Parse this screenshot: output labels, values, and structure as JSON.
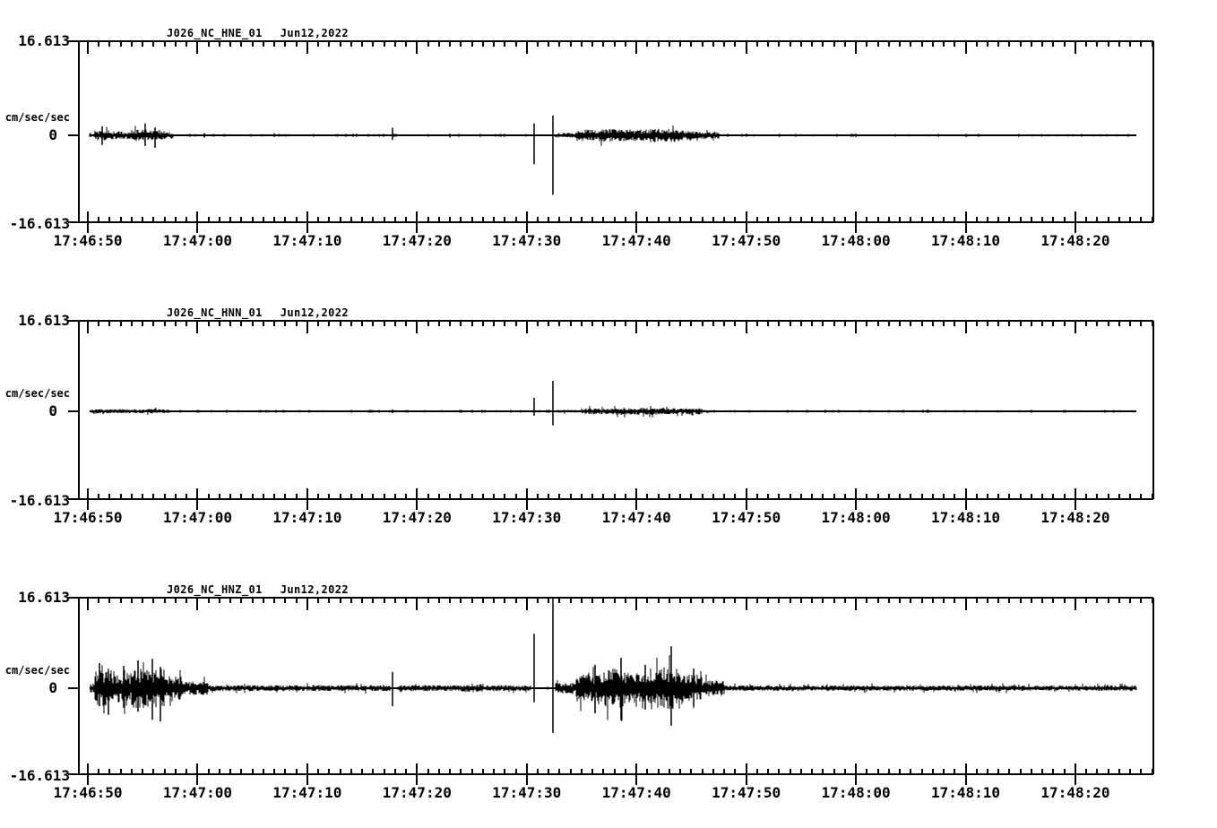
{
  "page": {
    "background": "#ffffff",
    "foreground": "#000000"
  },
  "time_axis": {
    "labels": [
      "17:46:50",
      "17:47:00",
      "17:47:10",
      "17:47:20",
      "17:47:30",
      "17:47:40",
      "17:47:50",
      "17:48:00",
      "17:48:10",
      "17:48:20"
    ],
    "minor_tick_interval_s": 1,
    "major_tick_interval_s": 10
  },
  "y_axis": {
    "max_label": "16.613",
    "zero_label": "0",
    "min_label": "-16.613",
    "unit": "cm/sec/sec",
    "ylim": [
      -16.613,
      16.613
    ]
  },
  "chart_data": [
    {
      "type": "line",
      "trace_id": "J026_NC_HNE_01",
      "date": "Jun12,2022",
      "ylabel": "cm/sec/sec",
      "ylim": [
        -16.613,
        16.613
      ],
      "signal": {
        "units": "cm/sec/sec",
        "envelope": [
          [
            0.2,
            0.6,
            0.25
          ],
          [
            0.6,
            2.0,
            0.8
          ],
          [
            2.0,
            4.0,
            0.65
          ],
          [
            4.0,
            7.0,
            0.9
          ],
          [
            7.0,
            7.8,
            0.5
          ],
          [
            7.8,
            27.6,
            0.14
          ],
          [
            28.1,
            40.4,
            0.14
          ],
          [
            42.6,
            44.5,
            0.4
          ],
          [
            44.5,
            47.0,
            0.95
          ],
          [
            47.0,
            49.0,
            1.1
          ],
          [
            49.0,
            51.0,
            0.95
          ],
          [
            51.0,
            53.5,
            1.1
          ],
          [
            53.5,
            55.0,
            0.8
          ],
          [
            55.0,
            57.5,
            0.6
          ],
          [
            57.5,
            95.6,
            0.14
          ]
        ],
        "spikes": [
          [
            1.3,
            1.6,
            1.7
          ],
          [
            5.2,
            2.1,
            1.9
          ],
          [
            6.1,
            1.4,
            2.2
          ],
          [
            10.6,
            0.4,
            0.4
          ],
          [
            17.0,
            0.35,
            0.3
          ],
          [
            27.8,
            1.3,
            0.8
          ],
          [
            33.0,
            0.3,
            0.35
          ],
          [
            40.7,
            2.1,
            5.1
          ],
          [
            42.4,
            3.5,
            10.5
          ],
          [
            60.0,
            0.3,
            0.25
          ],
          [
            70.0,
            0.3,
            0.3
          ],
          [
            80.0,
            0.25,
            0.3
          ]
        ]
      }
    },
    {
      "type": "line",
      "trace_id": "J026_NC_HNN_01",
      "date": "Jun12,2022",
      "ylabel": "cm/sec/sec",
      "ylim": [
        -16.613,
        16.613
      ],
      "signal": {
        "units": "cm/sec/sec",
        "envelope": [
          [
            0.3,
            7.5,
            0.36
          ],
          [
            7.5,
            40.4,
            0.11
          ],
          [
            42.6,
            45.0,
            0.25
          ],
          [
            45.0,
            48.0,
            0.5
          ],
          [
            48.0,
            52.0,
            0.58
          ],
          [
            52.0,
            56.0,
            0.5
          ],
          [
            56.0,
            57.0,
            0.25
          ],
          [
            57.0,
            95.6,
            0.11
          ]
        ],
        "spikes": [
          [
            27.8,
            0.35,
            0.35
          ],
          [
            40.7,
            2.5,
            0.8
          ],
          [
            42.4,
            5.6,
            2.6
          ]
        ]
      }
    },
    {
      "type": "line",
      "trace_id": "J026_NC_HNZ_01",
      "date": "Jun12,2022",
      "ylabel": "cm/sec/sec",
      "ylim": [
        -16.613,
        16.613
      ],
      "signal": {
        "units": "cm/sec/sec",
        "envelope": [
          [
            0.2,
            0.6,
            0.8
          ],
          [
            0.6,
            2.5,
            3.0
          ],
          [
            2.5,
            4.0,
            2.5
          ],
          [
            4.0,
            7.0,
            3.3
          ],
          [
            7.0,
            8.5,
            2.0
          ],
          [
            8.5,
            11.0,
            1.15
          ],
          [
            11.0,
            27.6,
            0.5
          ],
          [
            28.2,
            34.0,
            0.5
          ],
          [
            34.0,
            36.0,
            0.66
          ],
          [
            36.0,
            40.4,
            0.5
          ],
          [
            42.6,
            44.5,
            1.0
          ],
          [
            44.5,
            46.5,
            2.3
          ],
          [
            46.5,
            49.0,
            3.3
          ],
          [
            49.0,
            51.0,
            2.6
          ],
          [
            51.0,
            54.0,
            3.6
          ],
          [
            54.0,
            56.0,
            2.3
          ],
          [
            56.0,
            58.0,
            1.3
          ],
          [
            58.0,
            95.6,
            0.46
          ]
        ],
        "spikes": [
          [
            1.1,
            4.6,
            3.3
          ],
          [
            1.9,
            3.3,
            4.9
          ],
          [
            3.3,
            4.1,
            3.6
          ],
          [
            4.6,
            5.1,
            4.3
          ],
          [
            5.9,
            5.4,
            5.8
          ],
          [
            6.6,
            3.9,
            6.1
          ],
          [
            27.8,
            3.0,
            3.3
          ],
          [
            40.7,
            10.0,
            2.6
          ],
          [
            42.4,
            17.1,
            8.2
          ],
          [
            46.2,
            4.3,
            4.6
          ],
          [
            48.6,
            5.6,
            5.9
          ],
          [
            50.8,
            4.3,
            3.9
          ],
          [
            53.2,
            7.7,
            6.9
          ],
          [
            55.2,
            3.6,
            3.3
          ]
        ]
      }
    }
  ]
}
